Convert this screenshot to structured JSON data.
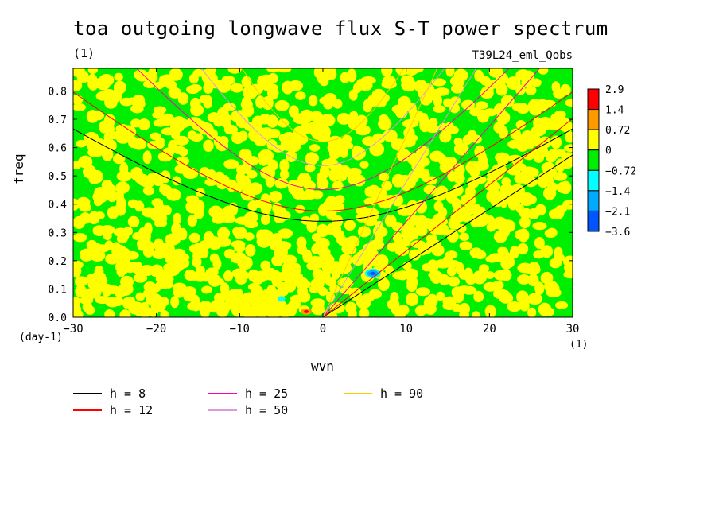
{
  "title": "toa outgoing longwave flux S-T power spectrum",
  "title_unit": "(1)",
  "run_id": "T39L24_eml_Qobs",
  "chart_data": {
    "type": "heatmap",
    "xlabel": "wvn",
    "x_unit": "(1)",
    "ylabel": "freq",
    "y_unit": "(day-1)",
    "xlim": [
      -30,
      30
    ],
    "ylim": [
      0,
      0.88
    ],
    "x_ticks": [
      -30,
      -20,
      -10,
      0,
      10,
      20,
      30
    ],
    "x_tick_labels": [
      "−30",
      "−20",
      "−10",
      "0",
      "10",
      "20",
      "30"
    ],
    "y_ticks": [
      0.0,
      0.1,
      0.2,
      0.3,
      0.4,
      0.5,
      0.6,
      0.7,
      0.8
    ],
    "y_tick_labels": [
      "0.0",
      "0.1",
      "0.2",
      "0.3",
      "0.4",
      "0.5",
      "0.6",
      "0.7",
      "0.8"
    ],
    "colorbar": {
      "labels": [
        "2.9",
        "1.4",
        "0.72",
        "0",
        "−0.72",
        "−1.4",
        "−2.1",
        "−3.6"
      ],
      "colors": [
        "#ff0000",
        "#ff9900",
        "#ffff00",
        "#00ee00",
        "#00ffff",
        "#00aaff",
        "#0055ff"
      ]
    },
    "dispersion_curves": [
      {
        "label": "h =  8",
        "h": 8,
        "color": "#000000"
      },
      {
        "label": "h = 12",
        "h": 12,
        "color": "#ff0000"
      },
      {
        "label": "h = 25",
        "h": 25,
        "color": "#ff00aa"
      },
      {
        "label": "h = 50",
        "h": 50,
        "color": "#dd99dd"
      },
      {
        "label": "h = 90",
        "h": 90,
        "color": "#ffcc00"
      }
    ],
    "features": [
      {
        "kind": "blue-min",
        "x": 6,
        "y": 0.155
      },
      {
        "kind": "cyan-min",
        "x": -5,
        "y": 0.065
      },
      {
        "kind": "red-max",
        "x": -2,
        "y": 0.02
      }
    ]
  }
}
